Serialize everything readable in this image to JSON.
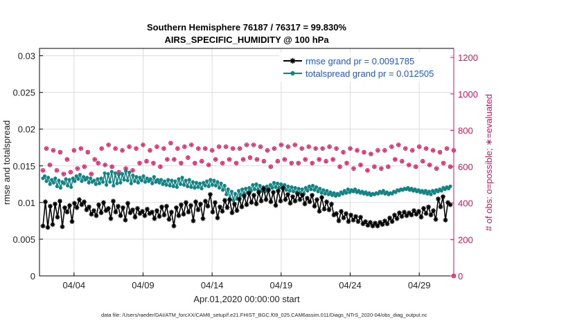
{
  "chart_data": {
    "type": "line",
    "title": "Southern Hemisphere 76187 / 76317 = 99.830%",
    "subtitle": "AIRS_SPECIFIC_HUMIDITY @ 100 hPa",
    "xlabel": "Apr.01,2020 00:00:00 start",
    "ylabel": "rmse and totalspread",
    "ylabel_right": "# of obs: o=possible; ∗=evaluated",
    "footer": "data file: /Users/raeder/DAI/ATM_forcXX/CAM6_setup/f.e21.FHIST_BGC.f09_025.CAM6assim.011/Diags_NTrS_2020-04/obs_diag_output.nc",
    "x_ticks": [
      "04/04",
      "04/09",
      "04/14",
      "04/19",
      "04/24",
      "04/29"
    ],
    "x_tick_days": [
      3,
      8,
      13,
      18,
      23,
      28
    ],
    "xlim_days": [
      0.5,
      30.5
    ],
    "ylim": [
      0,
      0.031
    ],
    "y_ticks": [
      "0",
      "0.005",
      "0.01",
      "0.015",
      "0.02",
      "0.025",
      "0.03"
    ],
    "ylim_right": [
      0,
      1250
    ],
    "y_ticks_right": [
      "0",
      "200",
      "400",
      "600",
      "800",
      "1000",
      "1200"
    ],
    "grid": true,
    "legend_position": "top-right",
    "series": [
      {
        "name": "rmse grand pr = 0.0091785",
        "color": "#000000",
        "marker": "asterisk",
        "values": [
          0.0068,
          0.0101,
          0.0066,
          0.0095,
          0.007,
          0.0098,
          0.008,
          0.0102,
          0.0067,
          0.0093,
          0.0087,
          0.0096,
          0.0074,
          0.0099,
          0.0093,
          0.0104,
          0.0097,
          0.0101,
          0.009,
          0.0094,
          0.0084,
          0.0089,
          0.0082,
          0.0097,
          0.0086,
          0.01,
          0.0089,
          0.0092,
          0.0078,
          0.0102,
          0.0087,
          0.0095,
          0.0082,
          0.0093,
          0.0076,
          0.0099,
          0.0086,
          0.009,
          0.008,
          0.0092,
          0.0085,
          0.0088,
          0.0082,
          0.0091,
          0.0085,
          0.0087,
          0.0078,
          0.0089,
          0.0081,
          0.0094,
          0.0083,
          0.0095,
          0.0077,
          0.0087,
          0.0068,
          0.0093,
          0.0082,
          0.0097,
          0.0084,
          0.01,
          0.0087,
          0.0096,
          0.0075,
          0.0101,
          0.009,
          0.0098,
          0.0078,
          0.0102,
          0.0095,
          0.0111,
          0.0087,
          0.01,
          0.0079,
          0.0094,
          0.0088,
          0.0103,
          0.0093,
          0.0104,
          0.0086,
          0.0098,
          0.0089,
          0.0105,
          0.0094,
          0.0109,
          0.0097,
          0.0113,
          0.01,
          0.011,
          0.0098,
          0.0114,
          0.0102,
          0.0119,
          0.0104,
          0.0117,
          0.0101,
          0.0114,
          0.0096,
          0.0116,
          0.0102,
          0.012,
          0.0104,
          0.0111,
          0.0099,
          0.0108,
          0.0102,
          0.0112,
          0.0104,
          0.011,
          0.0098,
          0.0106,
          0.0101,
          0.011,
          0.0095,
          0.0104,
          0.0088,
          0.0107,
          0.0091,
          0.0101,
          0.009,
          0.0098,
          0.0083,
          0.0085,
          0.0075,
          0.0088,
          0.0079,
          0.0085,
          0.0074,
          0.0083,
          0.0076,
          0.0081,
          0.0074,
          0.008,
          0.0071,
          0.0074,
          0.0069,
          0.0073,
          0.0068,
          0.0072,
          0.0068,
          0.0073,
          0.007,
          0.0075,
          0.0071,
          0.0079,
          0.0074,
          0.0083,
          0.0078,
          0.0086,
          0.0081,
          0.0087,
          0.0082,
          0.0086,
          0.0083,
          0.0089,
          0.0084,
          0.0088,
          0.008,
          0.0092,
          0.0085,
          0.0094,
          0.0083,
          0.0089,
          0.0077,
          0.0105,
          0.0094,
          0.0108,
          0.0076,
          0.01,
          0.0097
        ]
      },
      {
        "name": "totalspread grand pr = 0.012505",
        "color": "#138484",
        "marker": "dot",
        "values": [
          0.0133,
          0.0136,
          0.0129,
          0.0134,
          0.0125,
          0.0131,
          0.0127,
          0.0133,
          0.0122,
          0.013,
          0.012,
          0.0128,
          0.0126,
          0.0132,
          0.0123,
          0.0131,
          0.0121,
          0.0133,
          0.0129,
          0.0136,
          0.0132,
          0.0138,
          0.0129,
          0.0135,
          0.0131,
          0.0134,
          0.0127,
          0.0133,
          0.0128,
          0.013,
          0.0125,
          0.0132,
          0.0126,
          0.0133,
          0.0128,
          0.014,
          0.0124,
          0.0139,
          0.0128,
          0.0142,
          0.0123,
          0.014,
          0.0126,
          0.0138,
          0.0127,
          0.0139,
          0.0131,
          0.0143,
          0.013,
          0.0141,
          0.0126,
          0.0137,
          0.0129,
          0.0135,
          0.0127,
          0.0134,
          0.013,
          0.0136,
          0.0128,
          0.0133,
          0.0129,
          0.0132,
          0.0126,
          0.0135,
          0.0128,
          0.0131,
          0.0127,
          0.0131,
          0.0125,
          0.0129,
          0.0124,
          0.0131,
          0.0123,
          0.013,
          0.0122,
          0.0129,
          0.0121,
          0.0132,
          0.0125,
          0.0134,
          0.0124,
          0.013,
          0.0122,
          0.0131,
          0.0121,
          0.0128,
          0.012,
          0.0127,
          0.0121,
          0.0126,
          0.0119,
          0.0127,
          0.0123,
          0.0129,
          0.0122,
          0.0131,
          0.0124,
          0.013,
          0.0123,
          0.0128,
          0.012,
          0.0126,
          0.0117,
          0.0123,
          0.0111,
          0.0118,
          0.0105,
          0.0115,
          0.0103,
          0.0112,
          0.0105,
          0.0116,
          0.011,
          0.0118,
          0.0112,
          0.0119,
          0.0113,
          0.012,
          0.0116,
          0.0124,
          0.0118,
          0.0125,
          0.0117,
          0.0123,
          0.0116,
          0.0121,
          0.0115,
          0.0122,
          0.0118,
          0.0124,
          0.012,
          0.0127,
          0.0121,
          0.0126,
          0.012,
          0.0125,
          0.0119,
          0.0124,
          0.0117,
          0.0122,
          0.0116,
          0.0121,
          0.0115,
          0.012,
          0.0114,
          0.0119,
          0.0113,
          0.0118,
          0.0112,
          0.012,
          0.0116,
          0.0122,
          0.0118,
          0.0123,
          0.0117,
          0.0121,
          0.0115,
          0.0119,
          0.0113,
          0.0117,
          0.0112,
          0.0116,
          0.0111,
          0.0114,
          0.011,
          0.0113,
          0.0109,
          0.0112,
          0.011,
          0.0114,
          0.0112,
          0.0116,
          0.0113,
          0.0118,
          0.0114,
          0.0117,
          0.0115,
          0.0118,
          0.0114,
          0.0116,
          0.0113,
          0.0115,
          0.0112,
          0.0114,
          0.0111,
          0.0113,
          0.011,
          0.0112,
          0.0111,
          0.0113,
          0.0112,
          0.0115,
          0.0113,
          0.0116,
          0.0112,
          0.0114,
          0.0111,
          0.0113,
          0.0112,
          0.0115,
          0.0114,
          0.0117,
          0.0116,
          0.0118,
          0.0117,
          0.0119,
          0.0118,
          0.012,
          0.0117,
          0.0119,
          0.0116,
          0.0118,
          0.0115,
          0.0117,
          0.0114,
          0.0116,
          0.0113,
          0.0116,
          0.0112,
          0.0115,
          0.0111,
          0.0116,
          0.0113,
          0.0117,
          0.0115,
          0.0118,
          0.0116,
          0.012,
          0.0118,
          0.0121,
          0.0119,
          0.0122
        ]
      }
    ],
    "obs_possible": {
      "marker": "circle",
      "color": "#d6125d",
      "values": [
        580,
        700,
        610,
        690,
        580,
        680,
        560,
        640,
        570,
        690,
        590,
        700,
        600,
        680,
        560,
        640,
        620,
        700,
        610,
        720,
        600,
        700,
        570,
        690,
        590,
        710,
        580,
        700,
        620,
        720,
        630,
        690,
        620,
        710,
        600,
        700,
        640,
        730,
        640,
        700,
        620,
        710,
        650,
        720,
        620,
        700,
        630,
        700,
        610,
        690,
        640,
        710,
        620,
        710,
        640,
        700,
        620,
        700,
        640,
        720,
        650,
        720,
        640,
        710,
        630,
        690,
        600,
        700,
        630,
        720,
        640,
        710,
        620,
        720,
        620,
        700,
        640,
        710,
        620,
        700,
        640,
        700,
        630,
        710,
        640,
        700,
        600,
        680,
        620,
        700,
        590,
        690,
        610,
        680,
        580,
        670,
        600,
        690,
        590,
        690,
        600,
        710,
        640,
        720,
        630,
        700,
        610,
        690,
        600,
        710,
        630,
        700,
        610,
        690,
        590,
        680,
        620,
        700,
        600,
        690
      ]
    },
    "obs_evaluated": {
      "marker": "asterisk",
      "color": "#d6125d"
    }
  }
}
